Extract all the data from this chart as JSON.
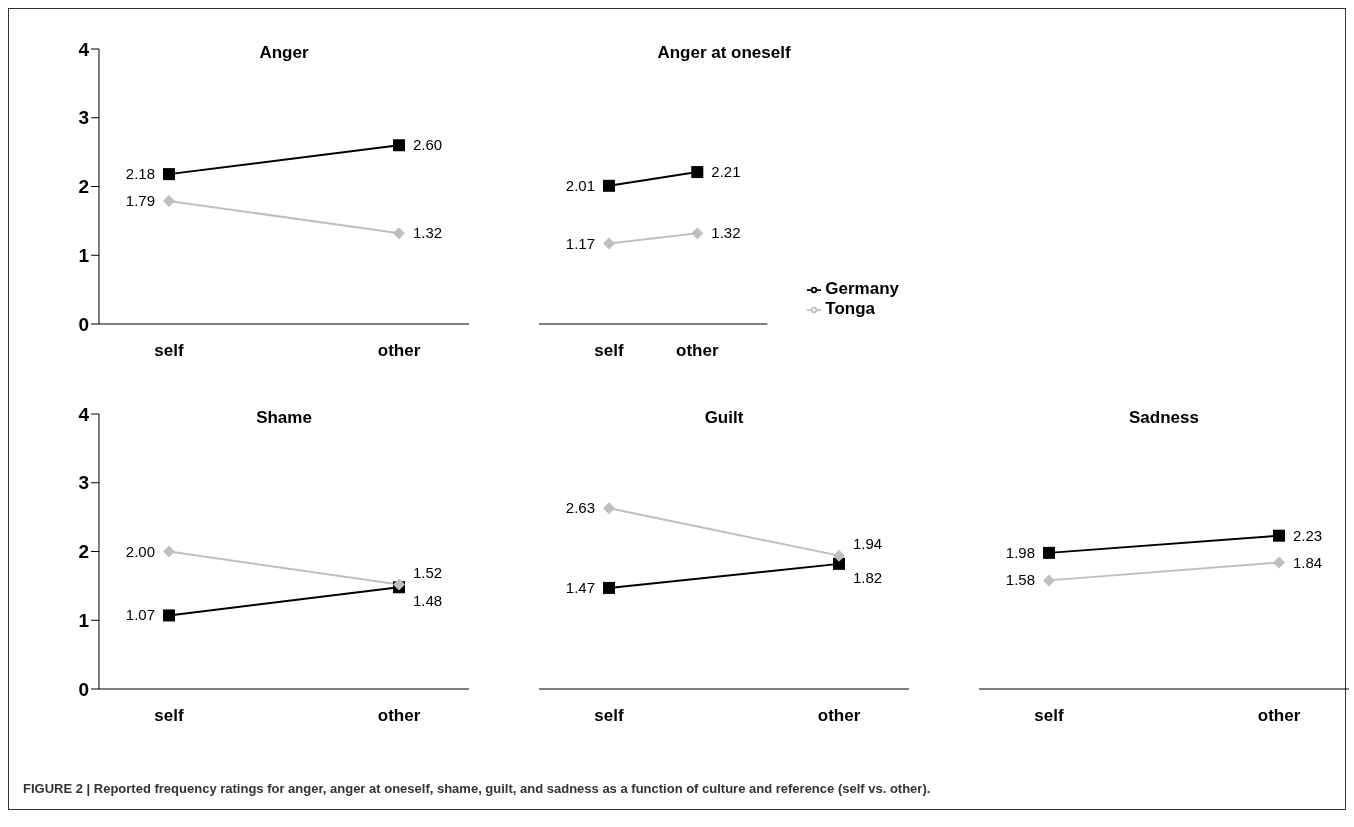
{
  "chart_data": [
    {
      "type": "line",
      "title": "Anger",
      "categories": [
        "self",
        "other"
      ],
      "ylim": [
        0,
        4
      ],
      "yticks": [
        0,
        1,
        2,
        3,
        4
      ],
      "grid": false,
      "series": [
        {
          "color": "#000000",
          "marker": "square",
          "values": [
            2.18,
            2.6
          ],
          "value_labels": [
            "2.18",
            "2.60"
          ]
        },
        {
          "color": "#bfbfbf",
          "marker": "diamond",
          "values": [
            1.79,
            1.32
          ],
          "value_labels": [
            "1.79",
            "1.32"
          ]
        }
      ],
      "annotations": [
        "FIGURE 2 | Reported frequency ratings for anger, anger at oneself, shame, guilt, and sadness as a function of culture and reference (self vs. other)."
      ]
    },
    {
      "type": "line",
      "title": "Anger at  oneself",
      "categories": [
        "self",
        "other"
      ],
      "ylim": [
        0,
        4
      ],
      "yticks": [
        0,
        1,
        2,
        3,
        4
      ],
      "tick_labels": "x",
      "grid": false,
      "legend": "right",
      "series": [
        {
          "name": "Germany",
          "color": "#000000",
          "marker": "square",
          "values": [
            2.01,
            2.21
          ],
          "value_labels": [
            "2.01",
            "2.21"
          ]
        },
        {
          "name": "Tonga",
          "color": "#bfbfbf",
          "marker": "diamond",
          "values": [
            1.17,
            1.32
          ],
          "value_labels": [
            "1.17",
            "1.32"
          ]
        }
      ]
    },
    {
      "type": "line",
      "title": "Shame",
      "categories": [
        "self",
        "other"
      ],
      "ylim": [
        0,
        4
      ],
      "yticks": [
        0,
        1,
        2,
        3,
        4
      ],
      "grid": false,
      "series": [
        {
          "color": "#000000",
          "marker": "square",
          "values": [
            1.07,
            1.48
          ],
          "value_labels": [
            "1.07",
            "1.48"
          ]
        },
        {
          "color": "#bfbfbf",
          "marker": "diamond",
          "values": [
            2.0,
            1.52
          ],
          "value_labels": [
            "2.00",
            "1.52"
          ]
        }
      ]
    },
    {
      "type": "line",
      "title": "Guilt",
      "categories": [
        "self",
        "other"
      ],
      "ylim": [
        0,
        4
      ],
      "yticks": [
        0,
        1,
        2,
        3,
        4
      ],
      "tick_labels": "x",
      "grid": false,
      "series": [
        {
          "color": "#000000",
          "marker": "square",
          "values": [
            1.47,
            1.82
          ],
          "value_labels": [
            "1.47",
            "1.82"
          ]
        },
        {
          "color": "#bfbfbf",
          "marker": "diamond",
          "values": [
            2.63,
            1.94
          ],
          "value_labels": [
            "2.63",
            "1.94"
          ]
        }
      ]
    },
    {
      "type": "line",
      "title": "Sadness",
      "categories": [
        "self",
        "other"
      ],
      "ylim": [
        0,
        4
      ],
      "yticks": [
        0,
        1,
        2,
        3,
        4
      ],
      "tick_labels": "x",
      "grid": false,
      "series": [
        {
          "color": "#000000",
          "marker": "square",
          "values": [
            1.98,
            2.23
          ],
          "value_labels": [
            "1.98",
            "2.23"
          ]
        },
        {
          "color": "#bfbfbf",
          "marker": "diamond",
          "values": [
            1.58,
            1.84
          ],
          "value_labels": [
            "1.58",
            "1.84"
          ]
        }
      ]
    }
  ]
}
